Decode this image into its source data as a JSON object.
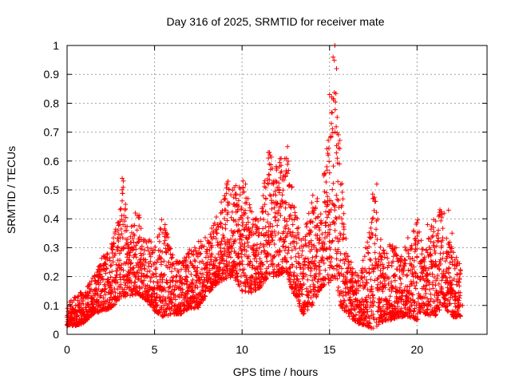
{
  "colors": {
    "series": "#ff0000",
    "grid": "#a0a0a0",
    "axis": "#000000"
  },
  "chart_data": {
    "type": "scatter",
    "title": "Day 316 of 2025, SRMTID for receiver mate",
    "xlabel": "GPS time / hours",
    "ylabel": "SRMTID / TECUs",
    "xlim": [
      0,
      24
    ],
    "ylim": [
      0,
      1
    ],
    "xticks": [
      0,
      5,
      10,
      15,
      20
    ],
    "yticks": [
      0,
      0.1,
      0.2,
      0.3,
      0.4,
      0.5,
      0.6,
      0.7,
      0.8,
      0.9,
      1
    ],
    "xtick_labels": [
      "0",
      "5",
      "10",
      "15",
      "20"
    ],
    "ytick_labels": [
      "0",
      "0.1",
      "0.2",
      "0.3",
      "0.4",
      "0.5",
      "0.6",
      "0.7",
      "0.8",
      "0.9",
      "1"
    ],
    "grid": true,
    "marker": "+",
    "series": [
      {
        "name": "SRMTID",
        "envelope_hours": [
          0,
          0.5,
          1,
          1.5,
          2,
          2.5,
          3,
          3.2,
          3.5,
          4,
          4.5,
          5,
          5.5,
          6,
          6.5,
          7,
          7.5,
          8,
          8.5,
          9,
          9.5,
          10,
          10.5,
          11,
          11.5,
          12,
          12.5,
          13,
          13.5,
          14,
          14.5,
          15,
          15.3,
          15.6,
          16,
          16.5,
          17,
          17.5,
          18,
          18.5,
          19,
          19.5,
          20,
          20.5,
          21,
          21.5,
          22,
          22.5
        ],
        "envelope_low": [
          0.03,
          0.03,
          0.04,
          0.07,
          0.08,
          0.09,
          0.12,
          0.13,
          0.13,
          0.14,
          0.12,
          0.08,
          0.06,
          0.07,
          0.07,
          0.09,
          0.09,
          0.14,
          0.17,
          0.19,
          0.2,
          0.15,
          0.14,
          0.16,
          0.2,
          0.2,
          0.22,
          0.13,
          0.07,
          0.1,
          0.16,
          0.18,
          0.2,
          0.1,
          0.07,
          0.04,
          0.03,
          0.02,
          0.04,
          0.05,
          0.06,
          0.06,
          0.05,
          0.07,
          0.06,
          0.1,
          0.06,
          0.06
        ],
        "envelope_high": [
          0.1,
          0.14,
          0.15,
          0.2,
          0.27,
          0.3,
          0.42,
          0.55,
          0.35,
          0.43,
          0.35,
          0.3,
          0.42,
          0.28,
          0.26,
          0.3,
          0.33,
          0.34,
          0.4,
          0.52,
          0.55,
          0.54,
          0.45,
          0.38,
          0.65,
          0.58,
          0.67,
          0.45,
          0.33,
          0.49,
          0.47,
          0.73,
          1.0,
          0.68,
          0.28,
          0.22,
          0.28,
          0.53,
          0.3,
          0.33,
          0.26,
          0.35,
          0.41,
          0.3,
          0.42,
          0.45,
          0.3,
          0.24
        ],
        "points": [
          [
            0.1,
            0.06
          ],
          [
            0.3,
            0.05
          ],
          [
            0.5,
            0.1
          ],
          [
            0.7,
            0.08
          ],
          [
            0.9,
            0.07
          ],
          [
            1.2,
            0.1
          ],
          [
            1.5,
            0.12
          ],
          [
            1.8,
            0.18
          ],
          [
            2.0,
            0.2
          ],
          [
            2.2,
            0.26
          ],
          [
            2.5,
            0.17
          ],
          [
            2.8,
            0.22
          ],
          [
            3.0,
            0.38
          ],
          [
            3.15,
            0.54
          ],
          [
            3.4,
            0.25
          ],
          [
            3.7,
            0.3
          ],
          [
            3.9,
            0.42
          ],
          [
            4.2,
            0.28
          ],
          [
            4.5,
            0.25
          ],
          [
            4.8,
            0.32
          ],
          [
            5.1,
            0.2
          ],
          [
            5.4,
            0.15
          ],
          [
            5.6,
            0.38
          ],
          [
            5.9,
            0.18
          ],
          [
            6.2,
            0.12
          ],
          [
            6.5,
            0.16
          ],
          [
            6.8,
            0.2
          ],
          [
            7.1,
            0.15
          ],
          [
            7.4,
            0.22
          ],
          [
            7.7,
            0.3
          ],
          [
            8.0,
            0.28
          ],
          [
            8.3,
            0.33
          ],
          [
            8.6,
            0.38
          ],
          [
            9.0,
            0.48
          ],
          [
            9.2,
            0.53
          ],
          [
            9.5,
            0.35
          ],
          [
            9.8,
            0.28
          ],
          [
            10.0,
            0.4
          ],
          [
            10.2,
            0.52
          ],
          [
            10.5,
            0.3
          ],
          [
            10.8,
            0.27
          ],
          [
            11.1,
            0.2
          ],
          [
            11.3,
            0.45
          ],
          [
            11.5,
            0.63
          ],
          [
            11.8,
            0.52
          ],
          [
            12.1,
            0.42
          ],
          [
            12.4,
            0.32
          ],
          [
            12.6,
            0.65
          ],
          [
            12.9,
            0.38
          ],
          [
            13.2,
            0.28
          ],
          [
            13.5,
            0.2
          ],
          [
            13.8,
            0.25
          ],
          [
            14.1,
            0.42
          ],
          [
            14.3,
            0.47
          ],
          [
            14.6,
            0.3
          ],
          [
            14.9,
            0.45
          ],
          [
            15.0,
            0.83
          ],
          [
            15.1,
            0.73
          ],
          [
            15.2,
            0.96
          ],
          [
            15.3,
            1.0
          ],
          [
            15.4,
            0.92
          ],
          [
            15.5,
            0.66
          ],
          [
            15.7,
            0.4
          ],
          [
            15.9,
            0.18
          ],
          [
            16.2,
            0.15
          ],
          [
            16.5,
            0.12
          ],
          [
            16.8,
            0.1
          ],
          [
            17.1,
            0.12
          ],
          [
            17.4,
            0.08
          ],
          [
            17.7,
            0.52
          ],
          [
            17.9,
            0.18
          ],
          [
            18.2,
            0.12
          ],
          [
            18.5,
            0.1
          ],
          [
            18.8,
            0.3
          ],
          [
            19.1,
            0.12
          ],
          [
            19.4,
            0.15
          ],
          [
            19.7,
            0.1
          ],
          [
            20.0,
            0.2
          ],
          [
            20.3,
            0.25
          ],
          [
            20.6,
            0.38
          ],
          [
            20.9,
            0.18
          ],
          [
            21.2,
            0.12
          ],
          [
            21.5,
            0.2
          ],
          [
            21.8,
            0.43
          ],
          [
            22.0,
            0.35
          ],
          [
            22.2,
            0.12
          ],
          [
            22.4,
            0.18
          ],
          [
            22.6,
            0.1
          ]
        ]
      }
    ]
  }
}
